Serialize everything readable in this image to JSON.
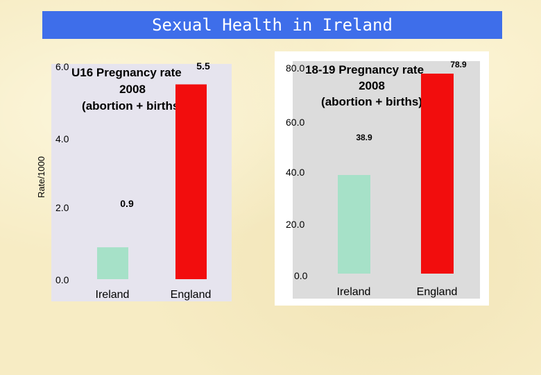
{
  "slide_title": "Sexual Health in Ireland",
  "colors": {
    "ireland": "#a6e1c8",
    "england": "#f20d0d",
    "title_bg": "#3e6eea"
  },
  "chart_data": [
    {
      "type": "bar",
      "title_lines": [
        "U16 Pregnancy rate",
        "2008",
        "(abortion + births)"
      ],
      "categories": [
        "Ireland",
        "England"
      ],
      "values": [
        0.9,
        5.5
      ],
      "value_labels": [
        "0.9",
        "5.5"
      ],
      "ylabel": "Rate/1000",
      "xlabel": "",
      "ylim": [
        0,
        6
      ],
      "yticks": [
        "0.0",
        "2.0",
        "4.0",
        "6.0"
      ]
    },
    {
      "type": "bar",
      "title_lines": [
        "18-19 Pregnancy rate",
        "2008",
        "(abortion + births)"
      ],
      "categories": [
        "Ireland",
        "England"
      ],
      "values": [
        38.9,
        78.9
      ],
      "value_labels": [
        "38.9",
        "78.9"
      ],
      "ylabel": "",
      "xlabel": "",
      "ylim": [
        0,
        80
      ],
      "yticks": [
        "0.0",
        "20.0",
        "40.0",
        "60.0",
        "80.0"
      ]
    }
  ]
}
